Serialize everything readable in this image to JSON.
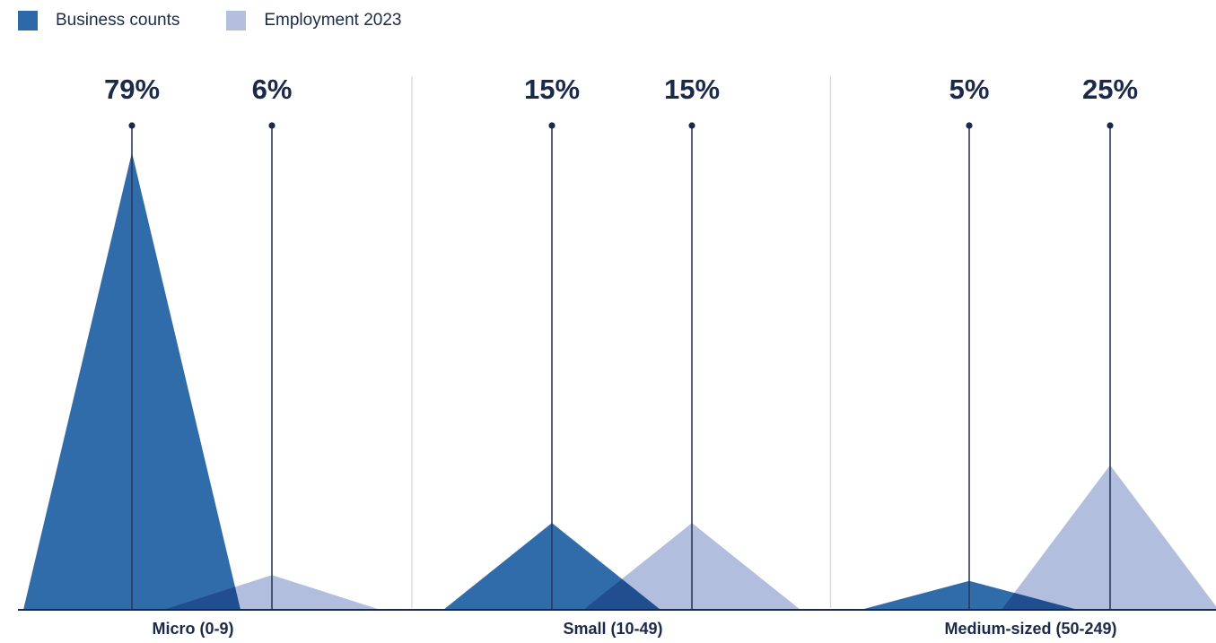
{
  "chart_data": {
    "type": "area",
    "title": "",
    "legend_position": "top-left",
    "categories": [
      "Micro (0-9)",
      "Small (10-49)",
      "Medium-sized (50-249)"
    ],
    "series": [
      {
        "name": "Business counts",
        "color": "#2d69a8",
        "values": [
          79,
          15,
          5
        ],
        "labels": [
          "79%",
          "15%",
          "5%"
        ]
      },
      {
        "name": "Employment 2023",
        "color": "#a5b3d8",
        "values": [
          6,
          15,
          25
        ],
        "labels": [
          "6%",
          "15%",
          "25%"
        ]
      }
    ],
    "ylim": [
      0,
      79
    ],
    "grid": false
  }
}
